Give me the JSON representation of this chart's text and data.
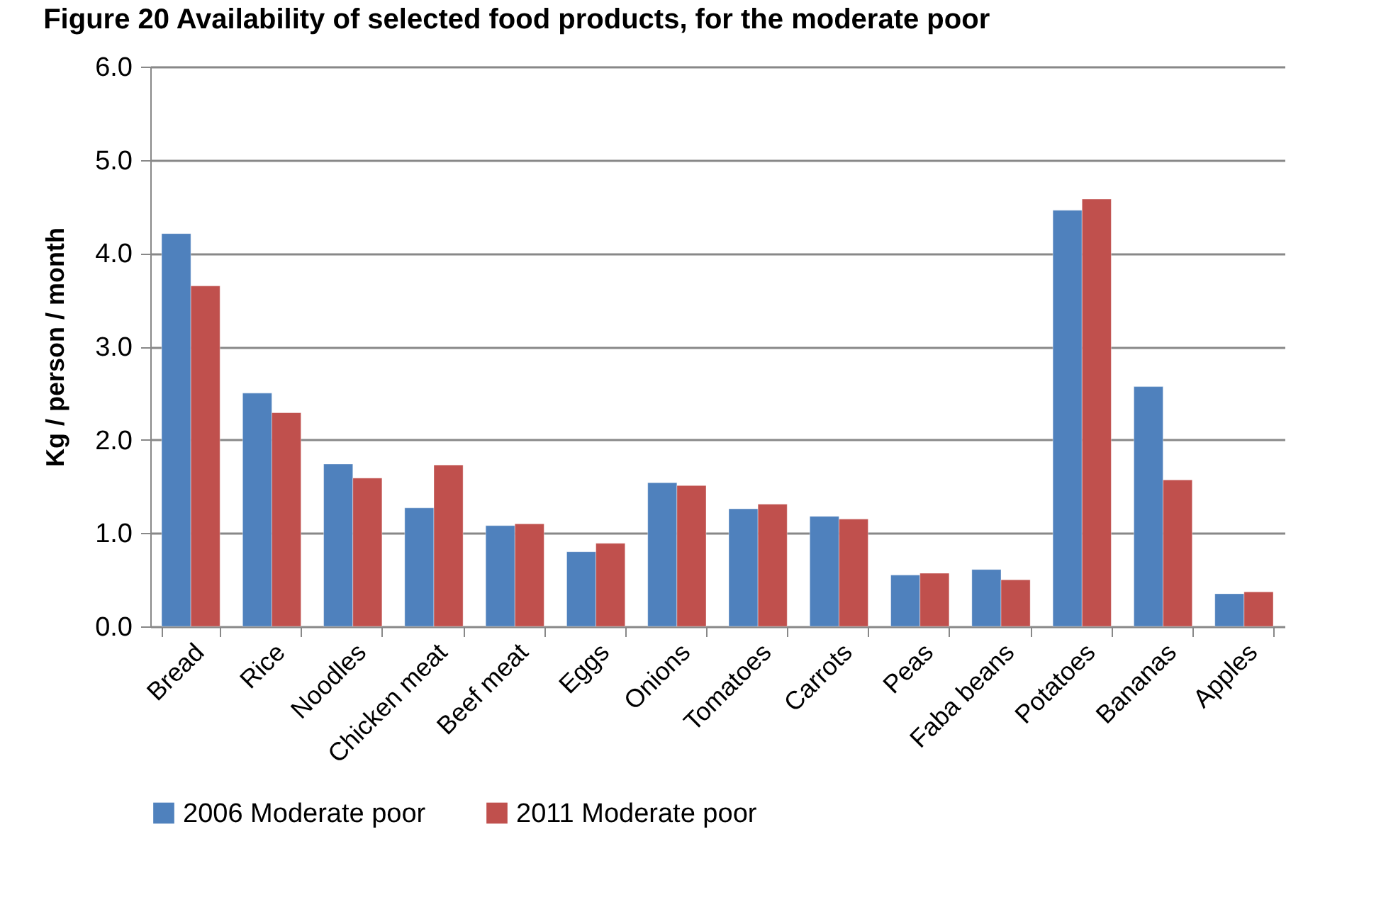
{
  "chart_data": {
    "type": "bar",
    "title": "Figure 20 Availability of selected food products, for the moderate poor",
    "ylabel": "Kg / person / month",
    "categories": [
      "Bread",
      "Rice",
      "Noodles",
      "Chicken meat",
      "Beef meat",
      "Eggs",
      "Onions",
      "Tomatoes",
      "Carrots",
      "Peas",
      "Faba beans",
      "Potatoes",
      "Bananas",
      "Apples"
    ],
    "series": [
      {
        "name": "2006 Moderate poor",
        "color": "#4f81bd",
        "values": [
          4.21,
          2.5,
          1.74,
          1.27,
          1.08,
          0.8,
          1.54,
          1.26,
          1.18,
          0.55,
          0.61,
          4.46,
          2.57,
          0.35
        ]
      },
      {
        "name": "2011 Moderate poor",
        "color": "#c0504d",
        "values": [
          3.65,
          2.29,
          1.59,
          1.73,
          1.1,
          0.89,
          1.51,
          1.31,
          1.15,
          0.57,
          0.5,
          4.58,
          1.57,
          0.37
        ]
      }
    ],
    "ylim": [
      0,
      6
    ],
    "yticks": [
      {
        "value": 0,
        "label": "0.0"
      },
      {
        "value": 1,
        "label": "1.0"
      },
      {
        "value": 2,
        "label": "2.0"
      },
      {
        "value": 3,
        "label": "3.0"
      },
      {
        "value": 4,
        "label": "4.0"
      },
      {
        "value": 5,
        "label": "5.0"
      },
      {
        "value": 6,
        "label": "6.0"
      }
    ],
    "grid": "y",
    "legend": "bottom"
  }
}
